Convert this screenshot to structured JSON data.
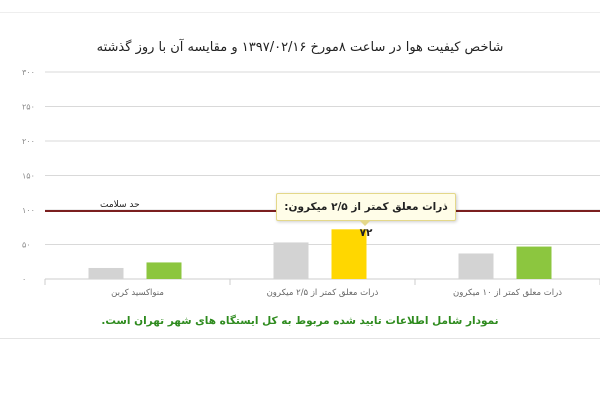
{
  "chart_data": {
    "type": "bar",
    "title": "شاخص کیفیت هوا در ساعت ۸مورخ ۱۳۹۷/۰۲/۱۶ و مقایسه آن با روز گذشته",
    "categories": [
      "ذرات معلق کمتر از ۱۰ میکرون",
      "ذرات معلق کمتر از ۲/۵ میکرون",
      "منواکسید کربن"
    ],
    "series": [
      {
        "values": [
          37,
          53,
          16
        ],
        "color": "#d3d3d3"
      },
      {
        "values": [
          47,
          72,
          24
        ],
        "colors": [
          "#8cc63f",
          "#ffd700",
          "#8cc63f"
        ]
      }
    ],
    "ylim": [
      0,
      300
    ],
    "yticks": [
      0,
      50,
      100,
      150,
      200,
      250,
      300
    ],
    "ytick_labels": [
      "۰",
      "۵۰",
      "۱۰۰",
      "۱۵۰",
      "۲۰۰",
      "۲۵۰",
      "۳۰۰"
    ],
    "grid": true,
    "reference_line": {
      "value": 100,
      "label": "حد سلامت",
      "color": "#7b1f1f"
    },
    "tooltip": "ذرات معلق کمتر از ۲/۵ میکرون: ۷۲"
  },
  "note": "نمودار شامل اطلاعات تایید شده مربوط به کل ایستگاه های شهر تهران است."
}
